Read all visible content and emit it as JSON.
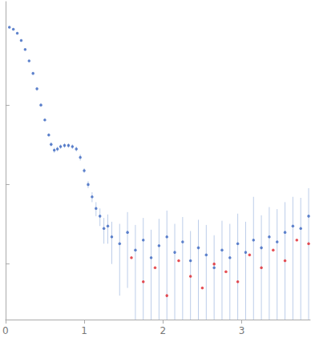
{
  "chart_data": {
    "type": "scatter",
    "xlim": [
      0,
      3.87
    ],
    "xticks": [
      0,
      1,
      2,
      3
    ],
    "ylim": [
      0.002,
      20
    ],
    "yticks": [
      0.01,
      0.1,
      1
    ],
    "log": "y",
    "grid": false,
    "tick_labels": "x",
    "series": [
      {
        "color": "#3b67c0",
        "marker": "circle",
        "error_color": "#bccde9",
        "x": [
          0.05,
          0.1,
          0.15,
          0.2,
          0.25,
          0.3,
          0.35,
          0.4,
          0.45,
          0.5,
          0.55,
          0.58,
          0.62,
          0.66,
          0.7,
          0.75,
          0.8,
          0.85,
          0.9,
          0.95,
          1.0,
          1.05,
          1.1,
          1.15,
          1.2,
          1.25,
          1.3,
          1.35,
          1.45,
          1.55,
          1.65,
          1.75,
          1.85,
          1.95,
          2.05,
          2.15,
          2.25,
          2.35,
          2.45,
          2.55,
          2.65,
          2.75,
          2.85,
          2.95,
          3.05,
          3.15,
          3.25,
          3.35,
          3.45,
          3.55,
          3.65,
          3.75,
          3.85
        ],
        "values": [
          9.5,
          9.0,
          8.0,
          6.5,
          5.0,
          3.6,
          2.5,
          1.6,
          1.0,
          0.65,
          0.42,
          0.32,
          0.27,
          0.28,
          0.3,
          0.31,
          0.31,
          0.3,
          0.28,
          0.22,
          0.15,
          0.1,
          0.07,
          0.05,
          0.04,
          0.028,
          0.03,
          0.022,
          0.018,
          0.025,
          0.015,
          0.02,
          0.012,
          0.017,
          0.022,
          0.014,
          0.019,
          0.011,
          0.016,
          0.013,
          0.009,
          0.015,
          0.012,
          0.018,
          0.014,
          0.02,
          0.016,
          0.022,
          0.019,
          0.025,
          0.03,
          0.028,
          0.04
        ],
        "errors": [
          0.05,
          0.05,
          0.05,
          0.04,
          0.04,
          0.03,
          0.03,
          0.02,
          0.02,
          0.02,
          0.02,
          0.02,
          0.02,
          0.02,
          0.02,
          0.02,
          0.02,
          0.02,
          0.02,
          0.02,
          0.01,
          0.01,
          0.01,
          0.01,
          0.01,
          0.01,
          0.012,
          0.012,
          0.014,
          0.02,
          0.016,
          0.018,
          0.015,
          0.02,
          0.025,
          0.018,
          0.02,
          0.015,
          0.02,
          0.018,
          0.014,
          0.02,
          0.02,
          0.025,
          0.02,
          0.05,
          0.025,
          0.03,
          0.03,
          0.035,
          0.04,
          0.04,
          0.05
        ]
      },
      {
        "color": "#e0242a",
        "marker": "circle",
        "x": [
          1.6,
          1.75,
          1.9,
          2.05,
          2.2,
          2.35,
          2.5,
          2.65,
          2.8,
          2.95,
          3.1,
          3.25,
          3.4,
          3.55,
          3.7,
          3.85
        ],
        "values": [
          0.012,
          0.006,
          0.009,
          0.004,
          0.011,
          0.007,
          0.005,
          0.01,
          0.008,
          0.006,
          0.013,
          0.009,
          0.015,
          0.011,
          0.02,
          0.018
        ]
      }
    ]
  }
}
